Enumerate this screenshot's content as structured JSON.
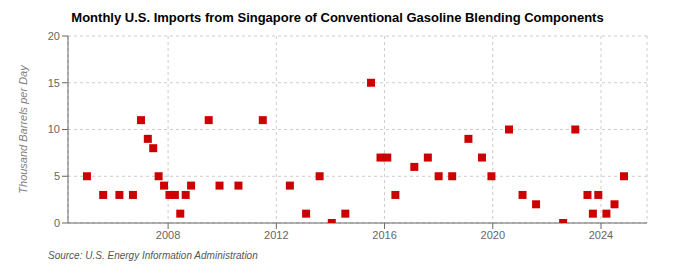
{
  "chart_data": {
    "type": "scatter",
    "title": "Monthly U.S. Imports from Singapore of Conventional Gasoline Blending Components",
    "y_label": "Thousand Barrels per Day",
    "annotations": [
      "Source: U.S. Energy Information Administration"
    ],
    "x": [
      2005.0,
      2005.6,
      2006.2,
      2006.7,
      2007.0,
      2007.25,
      2007.45,
      2007.65,
      2007.85,
      2008.05,
      2008.25,
      2008.45,
      2008.65,
      2008.85,
      2009.5,
      2009.9,
      2010.6,
      2011.5,
      2012.5,
      2013.1,
      2013.6,
      2014.05,
      2014.55,
      2015.5,
      2015.85,
      2016.1,
      2016.4,
      2017.1,
      2017.6,
      2018.0,
      2018.5,
      2019.1,
      2019.6,
      2019.95,
      2020.6,
      2021.1,
      2021.6,
      2022.6,
      2023.05,
      2023.5,
      2023.7,
      2023.9,
      2024.2,
      2024.5,
      2024.85
    ],
    "values": [
      5.0,
      3.0,
      3.0,
      3.0,
      11.0,
      9.0,
      8.0,
      5.0,
      4.0,
      3.0,
      3.0,
      1.0,
      3.0,
      4.0,
      11.0,
      4.0,
      4.0,
      11.0,
      4.0,
      1.0,
      5.0,
      0.0,
      1.0,
      15.0,
      7.0,
      7.0,
      3.0,
      6.0,
      7.0,
      5.0,
      5.0,
      9.0,
      7.0,
      5.0,
      10.0,
      3.0,
      2.0,
      0.0,
      10.0,
      3.0,
      1.0,
      3.0,
      1.0,
      2.0,
      5.0
    ],
    "color": "#cc0000",
    "marker": "square",
    "xlim": [
      2004.3,
      2025.7
    ],
    "xticks": [
      2008,
      2012,
      2016,
      2020,
      2024
    ],
    "ylim": [
      0,
      20
    ],
    "yticks": [
      0,
      5,
      10,
      15,
      20
    ],
    "grid": true
  }
}
